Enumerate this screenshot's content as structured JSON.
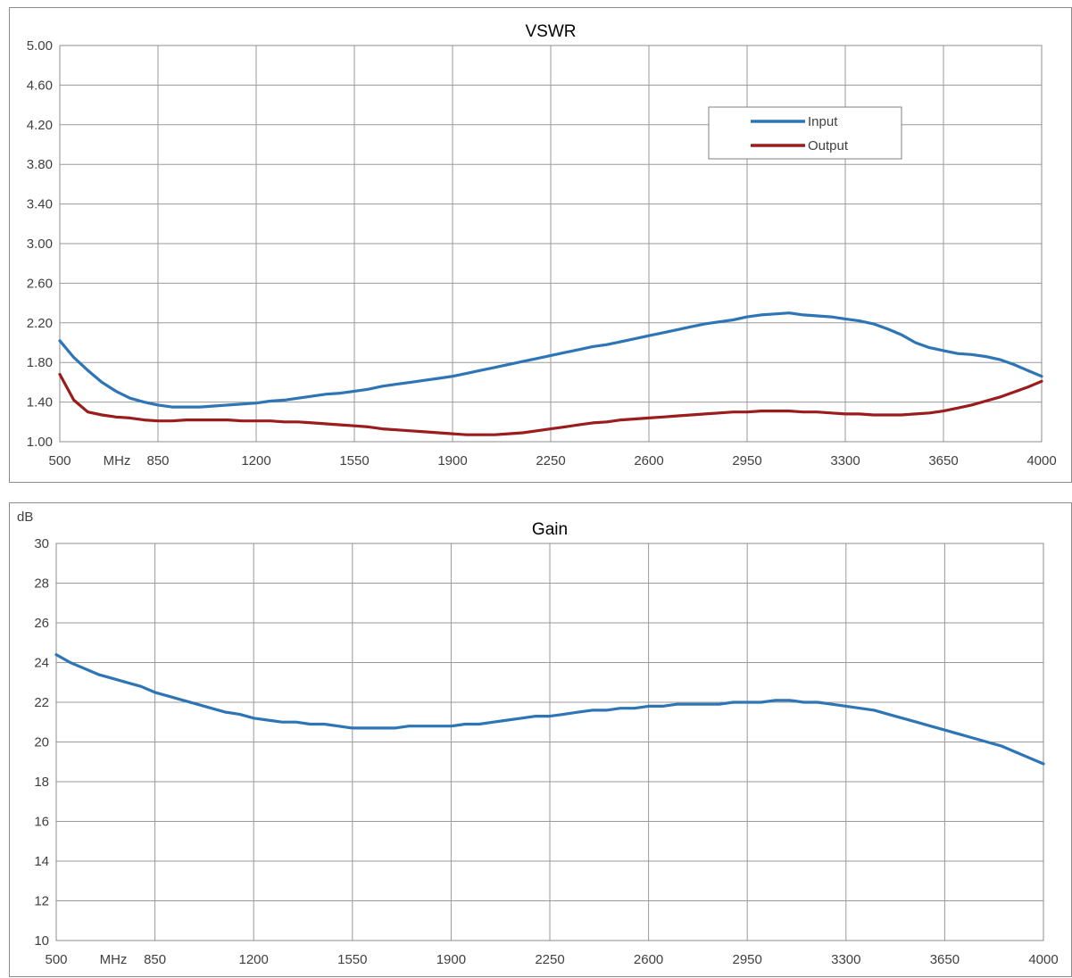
{
  "chart_data": [
    {
      "type": "line",
      "title": "VSWR",
      "xlabel": "MHz",
      "ylabel": "",
      "x_ticks": [
        "500",
        "850",
        "1200",
        "1550",
        "1900",
        "2250",
        "2600",
        "2950",
        "3300",
        "3650",
        "4000"
      ],
      "y_ticks": [
        "1.00",
        "1.40",
        "1.80",
        "2.20",
        "2.60",
        "3.00",
        "3.40",
        "3.80",
        "4.20",
        "4.60",
        "5.00"
      ],
      "xlim": [
        500,
        4000
      ],
      "ylim": [
        1.0,
        5.0
      ],
      "grid": true,
      "legend": "top-right",
      "series": [
        {
          "name": "Input",
          "color": "#2e75b6",
          "x": [
            500,
            550,
            600,
            650,
            700,
            750,
            800,
            850,
            900,
            950,
            1000,
            1050,
            1100,
            1150,
            1200,
            1250,
            1300,
            1350,
            1400,
            1450,
            1500,
            1550,
            1600,
            1650,
            1700,
            1750,
            1800,
            1850,
            1900,
            1950,
            2000,
            2050,
            2100,
            2150,
            2200,
            2250,
            2300,
            2350,
            2400,
            2450,
            2500,
            2550,
            2600,
            2650,
            2700,
            2750,
            2800,
            2850,
            2900,
            2950,
            3000,
            3050,
            3100,
            3150,
            3200,
            3250,
            3300,
            3350,
            3400,
            3450,
            3500,
            3550,
            3600,
            3650,
            3700,
            3750,
            3800,
            3850,
            3900,
            3950,
            4000
          ],
          "values": [
            2.02,
            1.85,
            1.72,
            1.6,
            1.51,
            1.44,
            1.4,
            1.37,
            1.35,
            1.35,
            1.35,
            1.36,
            1.37,
            1.38,
            1.39,
            1.41,
            1.42,
            1.44,
            1.46,
            1.48,
            1.49,
            1.51,
            1.53,
            1.56,
            1.58,
            1.6,
            1.62,
            1.64,
            1.66,
            1.69,
            1.72,
            1.75,
            1.78,
            1.81,
            1.84,
            1.87,
            1.9,
            1.93,
            1.96,
            1.98,
            2.01,
            2.04,
            2.07,
            2.1,
            2.13,
            2.16,
            2.19,
            2.21,
            2.23,
            2.26,
            2.28,
            2.29,
            2.3,
            2.28,
            2.27,
            2.26,
            2.24,
            2.22,
            2.19,
            2.14,
            2.08,
            2.0,
            1.95,
            1.92,
            1.89,
            1.88,
            1.86,
            1.83,
            1.78,
            1.72,
            1.66
          ]
        },
        {
          "name": "Output",
          "color": "#9b1c1c",
          "x": [
            500,
            550,
            600,
            650,
            700,
            750,
            800,
            850,
            900,
            950,
            1000,
            1050,
            1100,
            1150,
            1200,
            1250,
            1300,
            1350,
            1400,
            1450,
            1500,
            1550,
            1600,
            1650,
            1700,
            1750,
            1800,
            1850,
            1900,
            1950,
            2000,
            2050,
            2100,
            2150,
            2200,
            2250,
            2300,
            2350,
            2400,
            2450,
            2500,
            2550,
            2600,
            2650,
            2700,
            2750,
            2800,
            2850,
            2900,
            2950,
            3000,
            3050,
            3100,
            3150,
            3200,
            3250,
            3300,
            3350,
            3400,
            3450,
            3500,
            3550,
            3600,
            3650,
            3700,
            3750,
            3800,
            3850,
            3900,
            3950,
            4000
          ],
          "values": [
            1.68,
            1.42,
            1.3,
            1.27,
            1.25,
            1.24,
            1.22,
            1.21,
            1.21,
            1.22,
            1.22,
            1.22,
            1.22,
            1.21,
            1.21,
            1.21,
            1.2,
            1.2,
            1.19,
            1.18,
            1.17,
            1.16,
            1.15,
            1.13,
            1.12,
            1.11,
            1.1,
            1.09,
            1.08,
            1.07,
            1.07,
            1.07,
            1.08,
            1.09,
            1.11,
            1.13,
            1.15,
            1.17,
            1.19,
            1.2,
            1.22,
            1.23,
            1.24,
            1.25,
            1.26,
            1.27,
            1.28,
            1.29,
            1.3,
            1.3,
            1.31,
            1.31,
            1.31,
            1.3,
            1.3,
            1.29,
            1.28,
            1.28,
            1.27,
            1.27,
            1.27,
            1.28,
            1.29,
            1.31,
            1.34,
            1.37,
            1.41,
            1.45,
            1.5,
            1.55,
            1.61
          ]
        }
      ]
    },
    {
      "type": "line",
      "title": "Gain",
      "xlabel": "MHz",
      "ylabel": "dB",
      "x_ticks": [
        "500",
        "850",
        "1200",
        "1550",
        "1900",
        "2250",
        "2600",
        "2950",
        "3300",
        "3650",
        "4000"
      ],
      "y_ticks": [
        "10",
        "12",
        "14",
        "16",
        "18",
        "20",
        "22",
        "24",
        "26",
        "28",
        "30"
      ],
      "xlim": [
        500,
        4000
      ],
      "ylim": [
        10,
        30
      ],
      "grid": true,
      "series": [
        {
          "color": "#2e75b6",
          "x": [
            500,
            550,
            600,
            650,
            700,
            750,
            800,
            850,
            900,
            950,
            1000,
            1050,
            1100,
            1150,
            1200,
            1250,
            1300,
            1350,
            1400,
            1450,
            1500,
            1550,
            1600,
            1650,
            1700,
            1750,
            1800,
            1850,
            1900,
            1950,
            2000,
            2050,
            2100,
            2150,
            2200,
            2250,
            2300,
            2350,
            2400,
            2450,
            2500,
            2550,
            2600,
            2650,
            2700,
            2750,
            2800,
            2850,
            2900,
            2950,
            3000,
            3050,
            3100,
            3150,
            3200,
            3250,
            3300,
            3350,
            3400,
            3450,
            3500,
            3550,
            3600,
            3650,
            3700,
            3750,
            3800,
            3850,
            3900,
            3950,
            4000
          ],
          "values": [
            24.4,
            24.0,
            23.7,
            23.4,
            23.2,
            23.0,
            22.8,
            22.5,
            22.3,
            22.1,
            21.9,
            21.7,
            21.5,
            21.4,
            21.2,
            21.1,
            21.0,
            21.0,
            20.9,
            20.9,
            20.8,
            20.7,
            20.7,
            20.7,
            20.7,
            20.8,
            20.8,
            20.8,
            20.8,
            20.9,
            20.9,
            21.0,
            21.1,
            21.2,
            21.3,
            21.3,
            21.4,
            21.5,
            21.6,
            21.6,
            21.7,
            21.7,
            21.8,
            21.8,
            21.9,
            21.9,
            21.9,
            21.9,
            22.0,
            22.0,
            22.0,
            22.1,
            22.1,
            22.0,
            22.0,
            21.9,
            21.8,
            21.7,
            21.6,
            21.4,
            21.2,
            21.0,
            20.8,
            20.6,
            20.4,
            20.2,
            20.0,
            19.8,
            19.5,
            19.2,
            18.9
          ]
        }
      ]
    }
  ]
}
